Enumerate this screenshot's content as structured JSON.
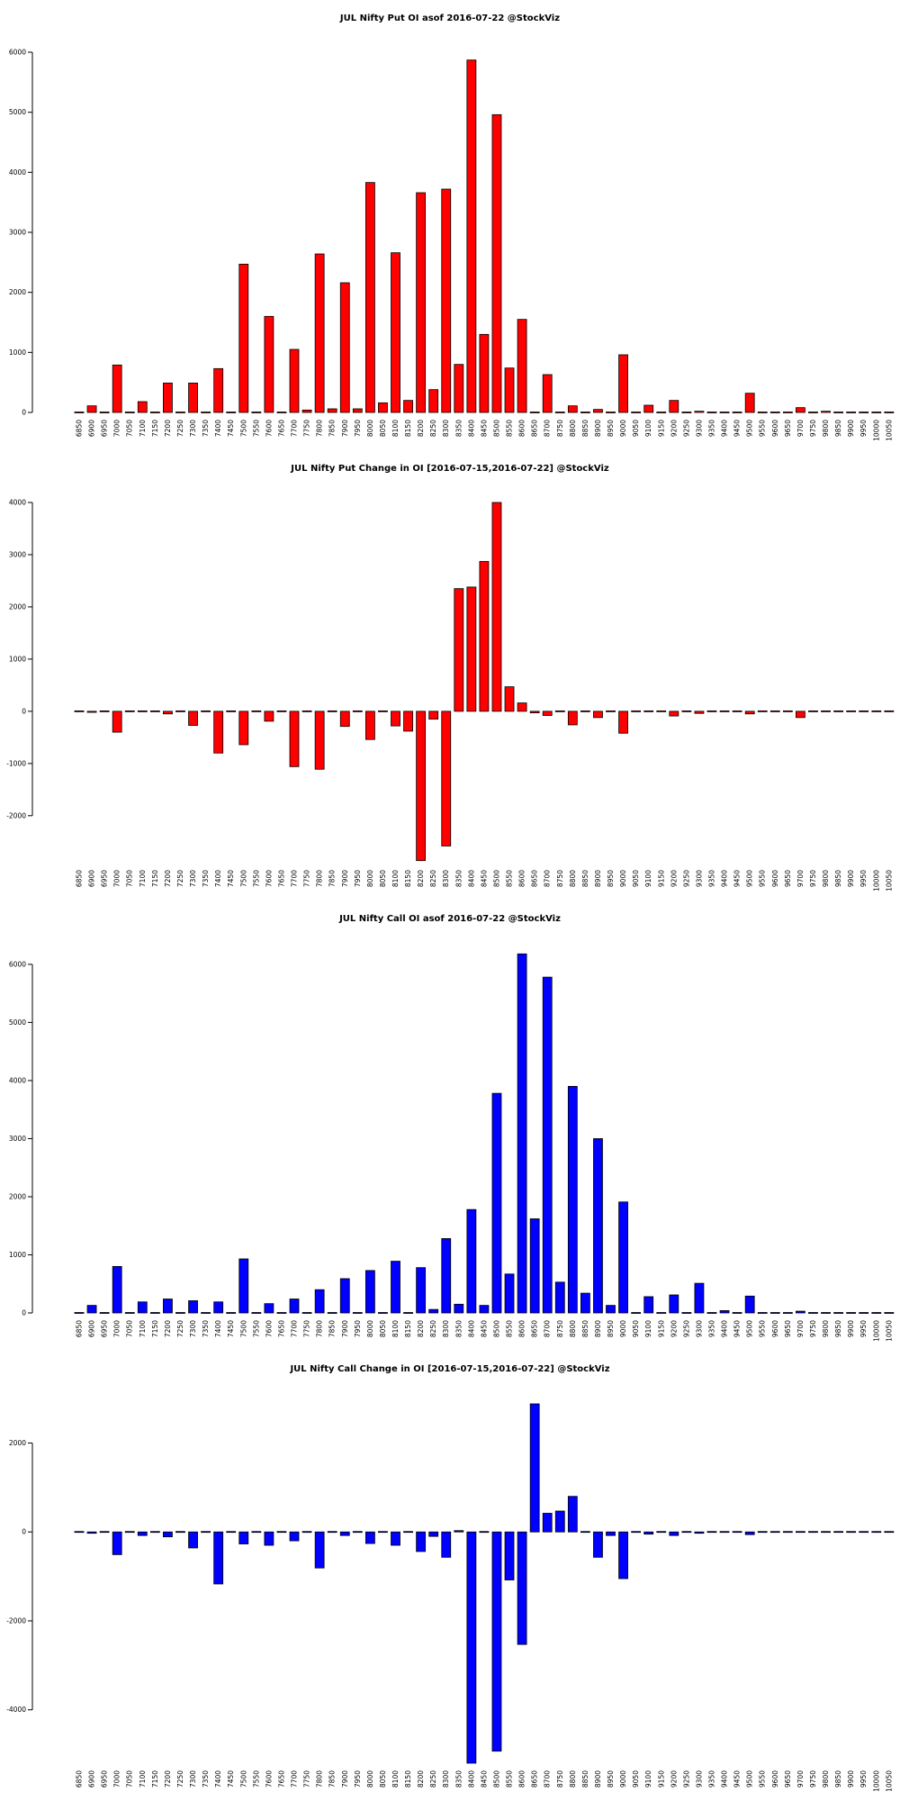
{
  "chart_data": [
    {
      "type": "bar",
      "title": "JUL Nifty Put OI asof 2016-07-22 @StockViz",
      "xlabel": "",
      "ylabel": "",
      "color": "#ff0000",
      "ylim": [
        0,
        6000
      ],
      "yticks": [
        0,
        1000,
        2000,
        3000,
        4000,
        5000,
        6000
      ],
      "categories": [
        "6850",
        "6900",
        "6950",
        "7000",
        "7050",
        "7100",
        "7150",
        "7200",
        "7250",
        "7300",
        "7350",
        "7400",
        "7450",
        "7500",
        "7550",
        "7600",
        "7650",
        "7700",
        "7750",
        "7800",
        "7850",
        "7900",
        "7950",
        "8000",
        "8050",
        "8100",
        "8150",
        "8200",
        "8250",
        "8300",
        "8350",
        "8400",
        "8450",
        "8500",
        "8550",
        "8600",
        "8650",
        "8700",
        "8750",
        "8800",
        "8850",
        "8900",
        "8950",
        "9000",
        "9050",
        "9100",
        "9150",
        "9200",
        "9250",
        "9300",
        "9350",
        "9400",
        "9450",
        "9500",
        "9550",
        "9600",
        "9650",
        "9700",
        "9750",
        "9800",
        "9850",
        "9900",
        "9950",
        "10000",
        "10050"
      ],
      "values": [
        0,
        110,
        0,
        790,
        0,
        180,
        0,
        490,
        0,
        490,
        0,
        730,
        0,
        2470,
        0,
        1600,
        0,
        1050,
        40,
        2640,
        60,
        2160,
        60,
        3830,
        160,
        2660,
        200,
        3660,
        380,
        3720,
        800,
        5870,
        1300,
        4960,
        740,
        1550,
        0,
        630,
        0,
        110,
        0,
        50,
        0,
        960,
        0,
        120,
        0,
        200,
        0,
        20,
        0,
        0,
        0,
        320,
        0,
        0,
        0,
        80,
        10,
        20,
        0,
        0,
        0,
        0,
        0
      ]
    },
    {
      "type": "bar",
      "title": "JUL Nifty Put Change in OI [2016-07-15,2016-07-22] @StockViz",
      "xlabel": "",
      "ylabel": "",
      "color": "#ff0000",
      "ylim": [
        -2900,
        4000
      ],
      "yticks": [
        -2000,
        -1000,
        0,
        1000,
        2000,
        3000,
        4000
      ],
      "categories": [
        "6850",
        "6900",
        "6950",
        "7000",
        "7050",
        "7100",
        "7150",
        "7200",
        "7250",
        "7300",
        "7350",
        "7400",
        "7450",
        "7500",
        "7550",
        "7600",
        "7650",
        "7700",
        "7750",
        "7800",
        "7850",
        "7900",
        "7950",
        "8000",
        "8050",
        "8100",
        "8150",
        "8200",
        "8250",
        "8300",
        "8350",
        "8400",
        "8450",
        "8500",
        "8550",
        "8600",
        "8650",
        "8700",
        "8750",
        "8800",
        "8850",
        "8900",
        "8950",
        "9000",
        "9050",
        "9100",
        "9150",
        "9200",
        "9250",
        "9300",
        "9350",
        "9400",
        "9450",
        "9500",
        "9550",
        "9600",
        "9650",
        "9700",
        "9750",
        "9800",
        "9850",
        "9900",
        "9950",
        "10000",
        "10050"
      ],
      "values": [
        0,
        -20,
        0,
        -400,
        0,
        -10,
        0,
        -50,
        0,
        -270,
        0,
        -800,
        0,
        -640,
        0,
        -190,
        0,
        -1060,
        -10,
        -1110,
        0,
        -290,
        0,
        -540,
        10,
        -280,
        -380,
        -2860,
        -150,
        -2580,
        2350,
        2380,
        2870,
        4000,
        470,
        160,
        -30,
        -80,
        0,
        -260,
        0,
        -120,
        0,
        -420,
        0,
        -10,
        0,
        -90,
        0,
        -40,
        0,
        0,
        0,
        -50,
        0,
        0,
        0,
        -120,
        0,
        0,
        0,
        0,
        0,
        0,
        0
      ]
    },
    {
      "type": "bar",
      "title": "JUL Nifty Call OI asof 2016-07-22 @StockViz",
      "xlabel": "",
      "ylabel": "",
      "color": "#0000ff",
      "ylim": [
        0,
        6200
      ],
      "yticks": [
        0,
        1000,
        2000,
        3000,
        4000,
        5000,
        6000
      ],
      "categories": [
        "6850",
        "6900",
        "6950",
        "7000",
        "7050",
        "7100",
        "7150",
        "7200",
        "7250",
        "7300",
        "7350",
        "7400",
        "7450",
        "7500",
        "7550",
        "7600",
        "7650",
        "7700",
        "7750",
        "7800",
        "7850",
        "7900",
        "7950",
        "8000",
        "8050",
        "8100",
        "8150",
        "8200",
        "8250",
        "8300",
        "8350",
        "8400",
        "8450",
        "8500",
        "8550",
        "8600",
        "8650",
        "8700",
        "8750",
        "8800",
        "8850",
        "8900",
        "8950",
        "9000",
        "9050",
        "9100",
        "9150",
        "9200",
        "9250",
        "9300",
        "9350",
        "9400",
        "9450",
        "9500",
        "9550",
        "9600",
        "9650",
        "9700",
        "9750",
        "9800",
        "9850",
        "9900",
        "9950",
        "10000",
        "10050"
      ],
      "values": [
        0,
        130,
        0,
        800,
        0,
        190,
        0,
        240,
        0,
        210,
        0,
        190,
        0,
        930,
        0,
        160,
        0,
        240,
        0,
        400,
        0,
        590,
        0,
        730,
        0,
        890,
        0,
        780,
        60,
        1280,
        150,
        1780,
        130,
        3780,
        670,
        6180,
        1620,
        5780,
        530,
        3900,
        340,
        3000,
        130,
        1910,
        0,
        280,
        0,
        310,
        0,
        510,
        0,
        40,
        0,
        290,
        0,
        0,
        0,
        30,
        0,
        0,
        0,
        0,
        0,
        0,
        0
      ]
    },
    {
      "type": "bar",
      "title": "JUL Nifty Call Change in OI [2016-07-15,2016-07-22] @StockViz",
      "xlabel": "",
      "ylabel": "",
      "color": "#0000ff",
      "ylim": [
        -5200,
        2900
      ],
      "yticks": [
        -4000,
        -2000,
        0,
        2000
      ],
      "categories": [
        "6850",
        "6900",
        "6950",
        "7000",
        "7050",
        "7100",
        "7150",
        "7200",
        "7250",
        "7300",
        "7350",
        "7400",
        "7450",
        "7500",
        "7550",
        "7600",
        "7650",
        "7700",
        "7750",
        "7800",
        "7850",
        "7900",
        "7950",
        "8000",
        "8050",
        "8100",
        "8150",
        "8200",
        "8250",
        "8300",
        "8350",
        "8400",
        "8450",
        "8500",
        "8550",
        "8600",
        "8650",
        "8700",
        "8750",
        "8800",
        "8850",
        "8900",
        "8950",
        "9000",
        "9050",
        "9100",
        "9150",
        "9200",
        "9250",
        "9300",
        "9350",
        "9400",
        "9450",
        "9500",
        "9550",
        "9600",
        "9650",
        "9700",
        "9750",
        "9800",
        "9850",
        "9900",
        "9950",
        "10000",
        "10050"
      ],
      "values": [
        0,
        -30,
        0,
        -510,
        0,
        -80,
        0,
        -110,
        0,
        -360,
        0,
        -1170,
        0,
        -270,
        0,
        -300,
        0,
        -200,
        0,
        -810,
        0,
        -80,
        0,
        -260,
        0,
        -300,
        0,
        -440,
        -100,
        -570,
        30,
        -5200,
        0,
        -4930,
        -1080,
        -2530,
        2880,
        420,
        470,
        800,
        0,
        -570,
        -80,
        -1050,
        0,
        -50,
        0,
        -80,
        0,
        -30,
        0,
        0,
        0,
        -60,
        0,
        0,
        0,
        0,
        0,
        10,
        0,
        0,
        0,
        0,
        0
      ]
    }
  ]
}
